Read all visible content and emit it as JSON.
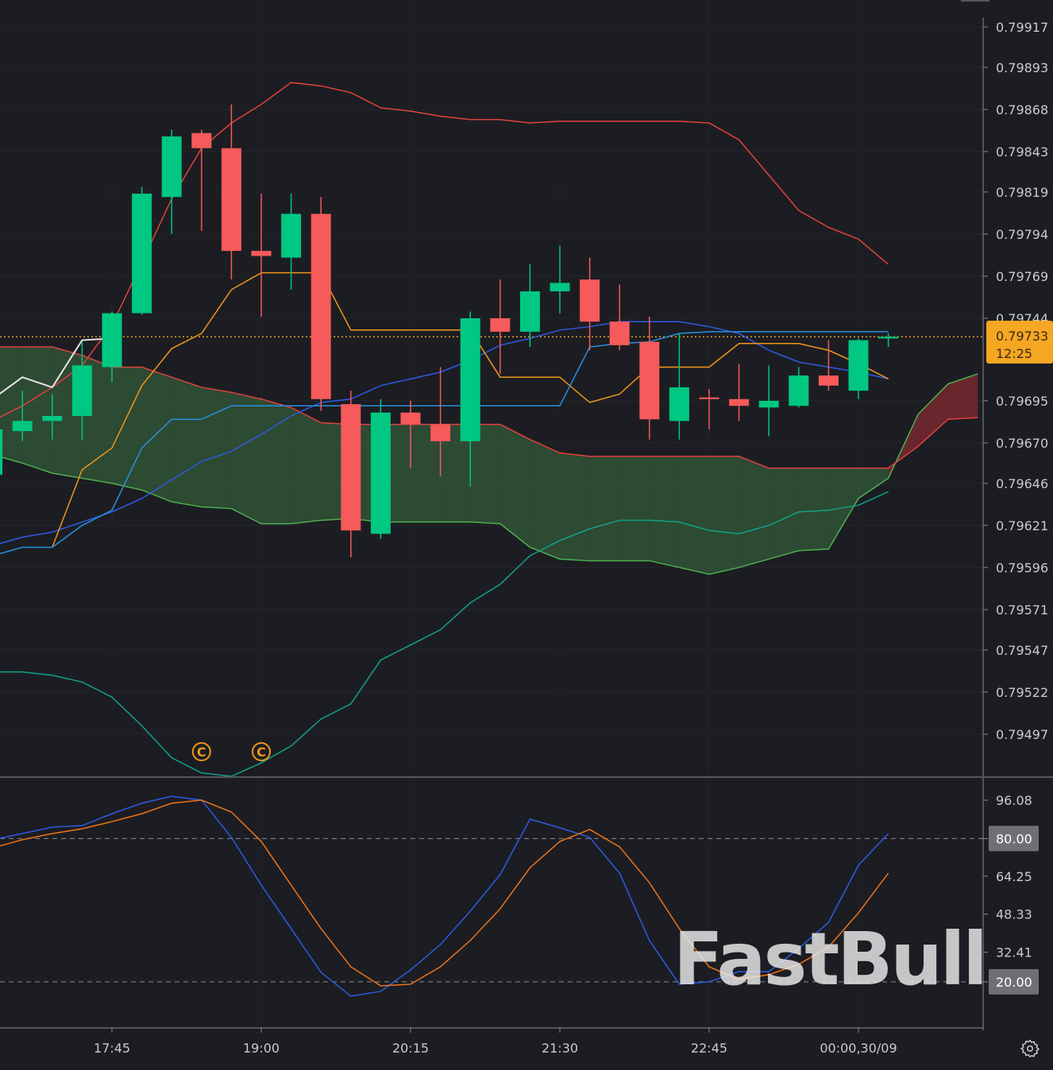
{
  "colors": {
    "background": "#1c1d22",
    "up": "#00c781",
    "down": "#f65a5a",
    "current_price": "#f5a623",
    "bb_upper": "#e0423e",
    "bb_lower": "#12a08a",
    "bb_mid": "#2d5be3",
    "tenkan": "#f0961a",
    "kijun": "#2a8fe0",
    "senkou_a": "#4caf50",
    "senkou_b": "#e0423e",
    "chikou": "#e6e6e6",
    "stoch_k": "#2d5be3",
    "stoch_d": "#f07318",
    "cloud_bull": "rgba(76,160,80,0.35)",
    "cloud_bear": "rgba(200,50,60,0.45)"
  },
  "current_price": {
    "price": "0.79733",
    "countdown": "12:25"
  },
  "watermark": "FastBull",
  "settings_icon": "gear-icon",
  "chart_data": [
    {
      "type": "candlestick",
      "ylim": [
        0.79472,
        0.79933
      ],
      "y_ticks": [
        "0.79917",
        "0.79893",
        "0.79868",
        "0.79843",
        "0.79819",
        "0.79794",
        "0.79769",
        "0.79744",
        "0.79695",
        "0.79670",
        "0.79646",
        "0.79621",
        "0.79596",
        "0.79571",
        "0.79547",
        "0.79522",
        "0.79497"
      ],
      "x_ticks": [
        "17:45",
        "19:00",
        "20:15",
        "21:30",
        "22:45",
        "00:00,30/09"
      ],
      "grid": true,
      "times": [
        "16:45",
        "17:00",
        "17:15",
        "17:30",
        "17:45",
        "18:00",
        "18:15",
        "18:30",
        "18:45",
        "19:00",
        "19:15",
        "19:30",
        "19:45",
        "20:00",
        "20:15",
        "20:30",
        "20:45",
        "21:00",
        "21:15",
        "21:30",
        "21:45",
        "22:00",
        "22:15",
        "22:30",
        "22:45",
        "23:00",
        "23:15",
        "23:30",
        "23:45",
        "00:00",
        "00:15"
      ],
      "candles": [
        [
          0.79651,
          0.79681,
          0.7965,
          0.79678
        ],
        [
          0.79677,
          0.79701,
          0.79671,
          0.79683
        ],
        [
          0.79683,
          0.79699,
          0.79672,
          0.79686
        ],
        [
          0.79686,
          0.7973,
          0.79672,
          0.79716
        ],
        [
          0.79715,
          0.79748,
          0.79706,
          0.79747
        ],
        [
          0.79747,
          0.79822,
          0.79746,
          0.79818
        ],
        [
          0.79816,
          0.79856,
          0.79794,
          0.79852
        ],
        [
          0.79854,
          0.79856,
          0.79796,
          0.79845
        ],
        [
          0.79845,
          0.79871,
          0.79767,
          0.79784
        ],
        [
          0.79784,
          0.79818,
          0.79745,
          0.79781
        ],
        [
          0.7978,
          0.79818,
          0.79761,
          0.79806
        ],
        [
          0.79806,
          0.79816,
          0.79689,
          0.79696
        ],
        [
          0.79693,
          0.79701,
          0.79602,
          0.79618
        ],
        [
          0.79616,
          0.79696,
          0.79613,
          0.79688
        ],
        [
          0.79688,
          0.79695,
          0.79655,
          0.79681
        ],
        [
          0.79681,
          0.79715,
          0.7965,
          0.79671
        ],
        [
          0.79671,
          0.79748,
          0.79644,
          0.79744
        ],
        [
          0.79744,
          0.79767,
          0.79711,
          0.79736
        ],
        [
          0.79736,
          0.79776,
          0.79727,
          0.7976
        ],
        [
          0.7976,
          0.79787,
          0.79747,
          0.79765
        ],
        [
          0.79767,
          0.7978,
          0.79725,
          0.79742
        ],
        [
          0.79742,
          0.79764,
          0.79725,
          0.79728
        ],
        [
          0.7973,
          0.79745,
          0.79672,
          0.79684
        ],
        [
          0.79683,
          0.79735,
          0.79672,
          0.79703
        ],
        [
          0.79697,
          0.79702,
          0.79678,
          0.79696
        ],
        [
          0.79696,
          0.79717,
          0.79683,
          0.79692
        ],
        [
          0.79691,
          0.79716,
          0.79674,
          0.79695
        ],
        [
          0.79692,
          0.79715,
          0.79691,
          0.7971
        ],
        [
          0.7971,
          0.79731,
          0.79701,
          0.79704
        ],
        [
          0.79701,
          0.79732,
          0.79696,
          0.79731
        ],
        [
          0.79732,
          0.79735,
          0.79727,
          0.79733
        ]
      ],
      "cloud_times": [
        "16:45",
        "17:00",
        "17:15",
        "17:30",
        "17:45",
        "18:00",
        "18:15",
        "18:30",
        "18:45",
        "19:00",
        "19:15",
        "19:30",
        "19:45",
        "20:00",
        "20:15",
        "20:30",
        "20:45",
        "21:00",
        "21:15",
        "21:30",
        "21:45",
        "22:00",
        "22:15",
        "22:30",
        "22:45",
        "23:00",
        "23:15",
        "23:30",
        "23:45",
        "00:00",
        "00:15",
        "00:30",
        "00:45",
        "01:00"
      ],
      "overlays": {
        "bb_upper": [
          0.79683,
          0.79692,
          0.79703,
          0.79716,
          0.7974,
          0.79777,
          0.79815,
          0.79845,
          0.7986,
          0.79871,
          0.79884,
          0.79882,
          0.79878,
          0.79869,
          0.79867,
          0.79864,
          0.79862,
          0.79862,
          0.7986,
          0.79861,
          0.79861,
          0.79861,
          0.79861,
          0.79861,
          0.7986,
          0.7985,
          0.79829,
          0.79808,
          0.79798,
          0.79791,
          0.79776
        ],
        "bb_lower": [
          0.79534,
          0.79534,
          0.79532,
          0.79528,
          0.79519,
          0.79502,
          0.79483,
          0.79474,
          0.79472,
          0.7948,
          0.7949,
          0.79506,
          0.79515,
          0.79541,
          0.7955,
          0.79559,
          0.79575,
          0.79586,
          0.79603,
          0.79612,
          0.79619,
          0.79624,
          0.79624,
          0.79623,
          0.79618,
          0.79616,
          0.79621,
          0.79629,
          0.7963,
          0.79633,
          0.79641
        ],
        "bb_mid": [
          0.79609,
          0.79614,
          0.79617,
          0.79623,
          0.79629,
          0.79637,
          0.79648,
          0.79659,
          0.79665,
          0.79675,
          0.79686,
          0.79694,
          0.79696,
          0.79704,
          0.79708,
          0.79712,
          0.79719,
          0.79728,
          0.79732,
          0.79737,
          0.79739,
          0.79742,
          0.79742,
          0.79742,
          0.79739,
          0.79735,
          0.79725,
          0.79718,
          0.79715,
          0.79712,
          0.79708
        ],
        "tenkan": [
          null,
          null,
          0.79608,
          0.79654,
          0.79667,
          0.79704,
          0.79726,
          0.79735,
          0.79761,
          0.79771,
          0.79771,
          0.79771,
          0.79737,
          0.79737,
          0.79737,
          0.79737,
          0.79737,
          0.79709,
          0.79709,
          0.79709,
          0.79694,
          0.79699,
          0.79715,
          0.79715,
          0.79715,
          0.79729,
          0.79729,
          0.79729,
          0.79725,
          0.79717,
          0.79708
        ],
        "kijun": [
          0.79603,
          0.79608,
          0.79608,
          0.79621,
          0.7963,
          0.79667,
          0.79684,
          0.79684,
          0.79692,
          0.79692,
          0.79692,
          0.79692,
          0.79692,
          0.79692,
          0.79692,
          0.79692,
          0.79692,
          0.79692,
          0.79692,
          0.79692,
          0.79727,
          0.79729,
          0.7973,
          0.79735,
          0.79736,
          0.79736,
          0.79736,
          0.79736,
          0.79736,
          0.79736,
          0.79736
        ],
        "chikou": [
          0.79696,
          0.79709,
          0.79703,
          0.79731,
          0.79732
        ],
        "senkou_a": [
          0.79663,
          0.79658,
          0.79652,
          0.79649,
          0.79646,
          0.79642,
          0.79635,
          0.79632,
          0.79631,
          0.79622,
          0.79622,
          0.79624,
          0.79625,
          0.79623,
          0.79623,
          0.79623,
          0.79623,
          0.79622,
          0.79608,
          0.79601,
          0.796,
          0.796,
          0.796,
          0.79596,
          0.79592,
          0.79596,
          0.79601,
          0.79606,
          0.79607,
          0.79637,
          0.79649,
          0.79687,
          0.79705,
          0.79711
        ],
        "senkou_b": [
          0.79727,
          0.79727,
          0.79727,
          0.79722,
          0.79715,
          0.79715,
          0.79709,
          0.79703,
          0.797,
          0.79696,
          0.79691,
          0.79682,
          0.79681,
          0.79681,
          0.79681,
          0.79681,
          0.79681,
          0.79681,
          0.79672,
          0.79664,
          0.79662,
          0.79662,
          0.79662,
          0.79662,
          0.79662,
          0.79662,
          0.79655,
          0.79655,
          0.79655,
          0.79655,
          0.79655,
          0.79668,
          0.79684,
          0.79685
        ]
      },
      "markers": [
        {
          "time": "18:30",
          "label": "C"
        },
        {
          "time": "19:00",
          "label": "C"
        }
      ]
    },
    {
      "type": "line",
      "ylim": [
        0.7,
        105.4
      ],
      "y_ticks": [
        "96.08",
        "80.00",
        "64.25",
        "48.33",
        "32.41",
        "20.00"
      ],
      "highlighted_levels": [
        "80.00",
        "20.00"
      ],
      "series": [
        {
          "key": "k",
          "values": [
            79.5,
            82.1,
            84.8,
            85.4,
            90.4,
            94.8,
            97.7,
            96.1,
            80.5,
            60.5,
            42.3,
            24.0,
            14.0,
            16.0,
            25.0,
            35.6,
            49.6,
            64.9,
            88.1,
            84.5,
            80.5,
            65.5,
            37.3,
            19.0,
            20.0,
            24.3,
            24.3,
            34.0,
            44.9,
            68.8,
            82.1
          ]
        },
        {
          "key": "d",
          "values": [
            76.1,
            79.5,
            82.1,
            84.1,
            87.1,
            90.4,
            94.8,
            96.1,
            91.1,
            78.8,
            60.5,
            42.3,
            26.3,
            18.3,
            19.0,
            26.3,
            37.3,
            50.6,
            67.8,
            78.8,
            83.8,
            76.5,
            61.5,
            42.3,
            26.3,
            21.0,
            23.0,
            27.3,
            34.6,
            48.9,
            65.5
          ]
        }
      ]
    }
  ]
}
